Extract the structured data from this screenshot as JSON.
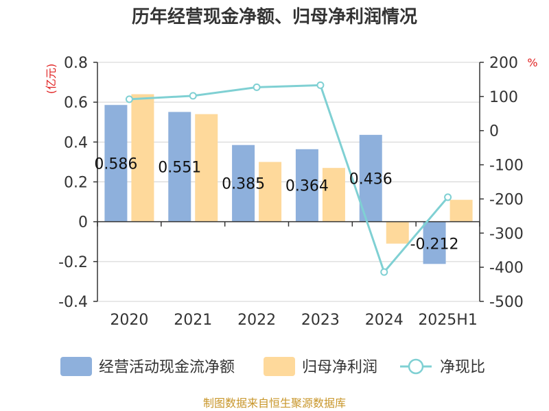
{
  "chart_data": {
    "type": "bar+line",
    "title": "历年经营现金净额、归母净利润情况",
    "categories": [
      "2020",
      "2021",
      "2022",
      "2023",
      "2024",
      "2025H1"
    ],
    "series": [
      {
        "name": "经营活动现金流净额",
        "type": "bar",
        "axis": "left",
        "color": "#8eb0dc",
        "values": [
          0.586,
          0.551,
          0.385,
          0.364,
          0.436,
          -0.212
        ]
      },
      {
        "name": "归母净利润",
        "type": "bar",
        "axis": "left",
        "color": "#fed99b",
        "values": [
          0.64,
          0.54,
          0.3,
          0.27,
          -0.11,
          0.11
        ]
      },
      {
        "name": "净现比",
        "type": "line",
        "axis": "right",
        "color": "#7fd0d3",
        "values": [
          92,
          102,
          127,
          133,
          -414,
          -195
        ]
      }
    ],
    "data_labels": [
      "0.586",
      "0.551",
      "0.385",
      "0.364",
      "0.436",
      "-0.212"
    ],
    "y_left": {
      "unit": "(亿元)",
      "min": -0.4,
      "max": 0.8,
      "ticks": [
        "-0.4",
        "-0.2",
        "0",
        "0.2",
        "0.4",
        "0.6",
        "0.8"
      ]
    },
    "y_right": {
      "unit": "%",
      "min": -500,
      "max": 200,
      "ticks": [
        "-500",
        "-400",
        "-300",
        "-200",
        "-100",
        "0",
        "100",
        "200"
      ]
    },
    "grid": true,
    "legend_position": "bottom"
  },
  "source": "制图数据来自恒生聚源数据库"
}
